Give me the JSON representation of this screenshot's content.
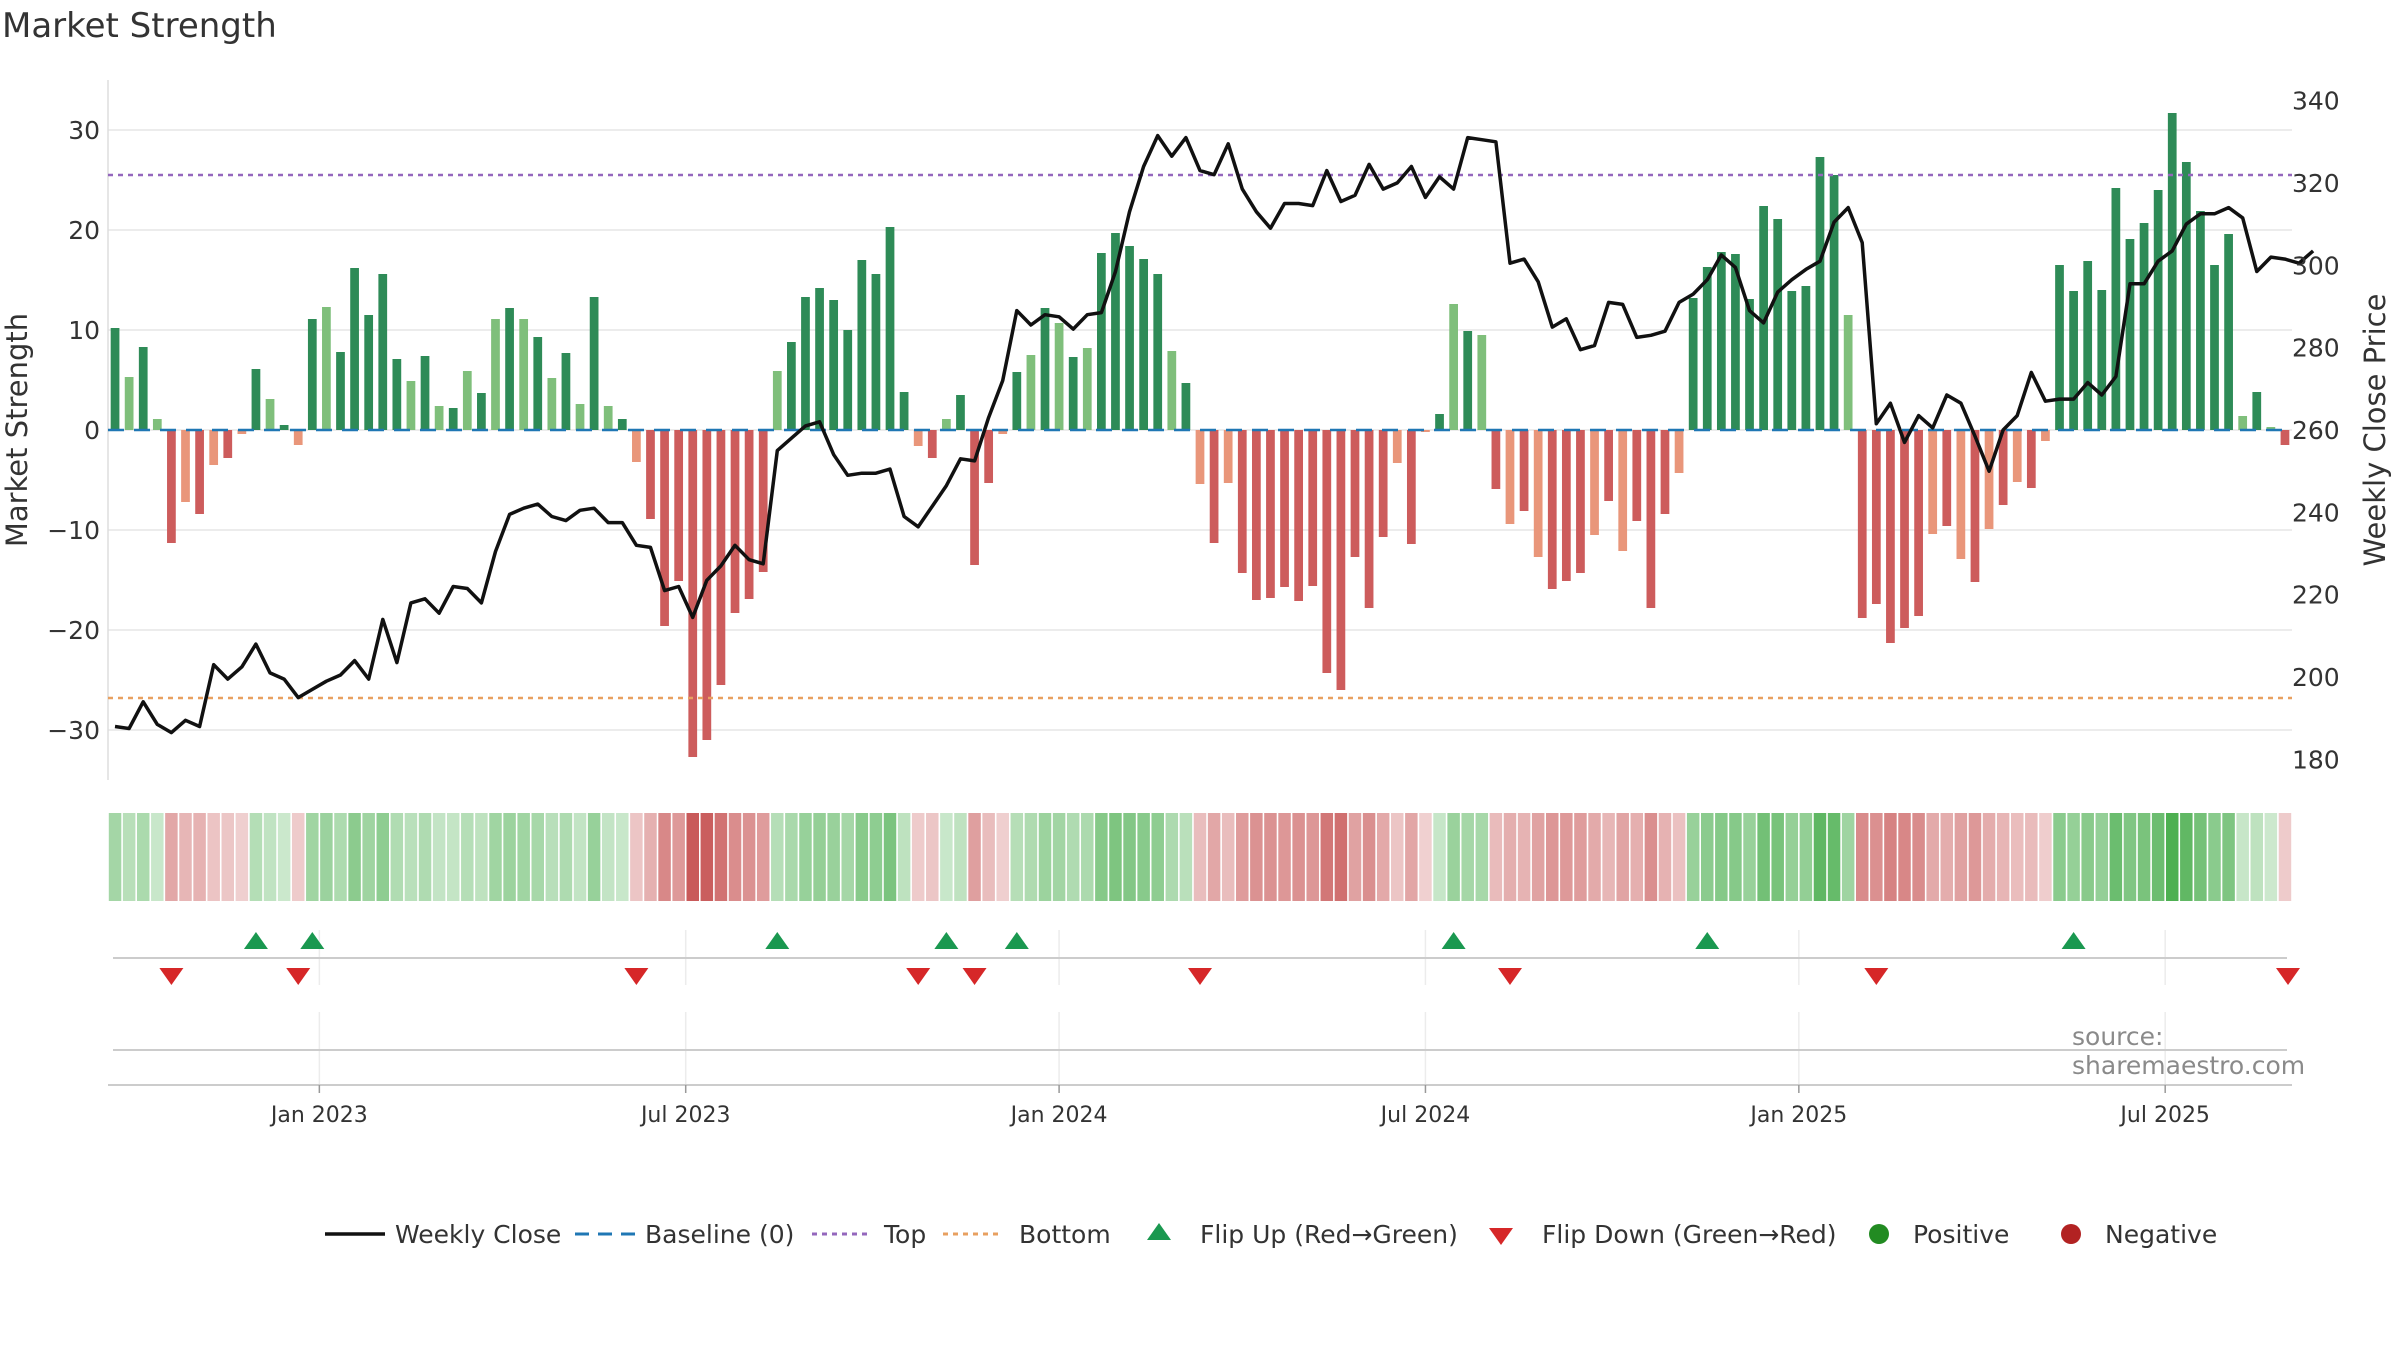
{
  "title": "Market Strength",
  "source": "source: sharemaestro.com",
  "chart_data": {
    "type": "bar",
    "title": "Market Strength",
    "ylabel": "Market Strength",
    "y2label": "Weekly Close Price",
    "ylim": [
      -35,
      35
    ],
    "y2lim": [
      175,
      345
    ],
    "yticks": [
      -30,
      -20,
      -10,
      0,
      10,
      20,
      30
    ],
    "y2ticks": [
      180,
      200,
      220,
      240,
      260,
      280,
      300,
      320,
      340
    ],
    "top_threshold": 25.5,
    "bottom_threshold": -26.8,
    "x_ticks": [
      {
        "label": "Jan 2023",
        "week": 15
      },
      {
        "label": "Jul 2023",
        "week": 41
      },
      {
        "label": "Jan 2024",
        "week": 67.5
      },
      {
        "label": "Jul 2024",
        "week": 93.5
      },
      {
        "label": "Jan 2025",
        "week": 120
      },
      {
        "label": "Jul 2025",
        "week": 146
      }
    ],
    "strength": [
      10.2,
      5.3,
      8.3,
      1.1,
      -11.3,
      -7.2,
      -8.4,
      -3.5,
      -2.8,
      -0.4,
      6.1,
      3.1,
      0.5,
      -1.5,
      11.1,
      12.3,
      7.8,
      16.2,
      11.5,
      15.6,
      7.1,
      4.9,
      7.4,
      2.4,
      2.2,
      5.9,
      3.7,
      11.1,
      12.2,
      11.1,
      9.3,
      5.2,
      7.7,
      2.6,
      13.3,
      2.4,
      1.1,
      -3.2,
      -8.9,
      -19.6,
      -15.1,
      -32.7,
      -31.0,
      -25.5,
      -18.3,
      -16.9,
      -14.2,
      5.9,
      8.8,
      13.3,
      14.2,
      13.0,
      10.0,
      17.0,
      15.6,
      20.3,
      3.8,
      -1.6,
      -2.8,
      1.1,
      3.5,
      -13.5,
      -5.3,
      -0.4,
      5.8,
      7.5,
      12.2,
      10.7,
      7.3,
      8.2,
      17.7,
      19.7,
      18.4,
      17.1,
      15.6,
      7.9,
      4.7,
      -5.4,
      -11.3,
      -5.3,
      -14.3,
      -17.0,
      -16.8,
      -15.7,
      -17.1,
      -15.6,
      -24.3,
      -26.0,
      -12.7,
      -17.8,
      -10.7,
      -3.3,
      -11.4,
      -0.2,
      1.6,
      12.6,
      9.9,
      9.5,
      -5.9,
      -9.4,
      -8.1,
      -12.7,
      -15.9,
      -15.1,
      -14.3,
      -10.5,
      -7.1,
      -12.1,
      -9.1,
      -17.8,
      -8.4,
      -4.3,
      13.2,
      16.3,
      17.8,
      17.6,
      13.1,
      22.4,
      21.1,
      13.9,
      14.4,
      27.3,
      25.5,
      11.5,
      -18.8,
      -17.4,
      -21.3,
      -19.8,
      -18.6,
      -10.4,
      -9.6,
      -12.9,
      -15.2,
      -9.9,
      -7.5,
      -5.2,
      -5.8,
      -1.1,
      16.5,
      13.9,
      16.9,
      14.0,
      24.2,
      19.1,
      20.7,
      24.0,
      31.7,
      26.8,
      21.9,
      16.5,
      19.6,
      1.4,
      3.8,
      0.3,
      -1.5
    ],
    "weekly_close": [
      188,
      187.5,
      194,
      188.5,
      186.5,
      189.5,
      188,
      203,
      199.5,
      202.5,
      208,
      201,
      199.5,
      195,
      197,
      199,
      200.5,
      204,
      199.5,
      214,
      203.5,
      218,
      219,
      215.5,
      222,
      221.5,
      218,
      230.5,
      239.5,
      241,
      242,
      239,
      238,
      240.5,
      241,
      237.5,
      237.5,
      232,
      231.5,
      221,
      222,
      214.5,
      223.5,
      227,
      232,
      228.5,
      227.5,
      255,
      258,
      261,
      262,
      254,
      249,
      249.5,
      249.5,
      250.5,
      239,
      236.5,
      241.5,
      246.5,
      253,
      252.5,
      263,
      272,
      289,
      285.5,
      288,
      287.5,
      284.5,
      288,
      288.5,
      298.5,
      313,
      324,
      331.5,
      326.5,
      331,
      323,
      322,
      329.5,
      318.5,
      313,
      309,
      315,
      315,
      314.5,
      323,
      315.5,
      317,
      324.5,
      318.5,
      320,
      324,
      316.5,
      321.5,
      318.5,
      331,
      330.5,
      330,
      300.5,
      301.5,
      296,
      285,
      287,
      279.5,
      280.5,
      291,
      290.5,
      282.5,
      283,
      284,
      291,
      293,
      296.5,
      302.5,
      299.5,
      289,
      286,
      293.5,
      296.5,
      299,
      301,
      310.5,
      314,
      305.5,
      261.5,
      266.5,
      257,
      263.5,
      260.5,
      268.5,
      266.5,
      258.5,
      250,
      260,
      263.5,
      274,
      267,
      267.5,
      267.5,
      271.5,
      268.5,
      273,
      295.5,
      295.5,
      301,
      303.5,
      310,
      312.5,
      312.5,
      314,
      311.5,
      298.5,
      302,
      301.5,
      300.5,
      303.5
    ],
    "flip_up_weeks": [
      10,
      14,
      47,
      59,
      64,
      95,
      113,
      139
    ],
    "flip_down_weeks": [
      4,
      13,
      37,
      57,
      61,
      77,
      99,
      125,
      157
    ],
    "legend": [
      {
        "label": "Weekly Close",
        "kind": "line"
      },
      {
        "label": "Baseline (0)",
        "kind": "dash"
      },
      {
        "label": "Top",
        "kind": "dotted-purple"
      },
      {
        "label": "Bottom",
        "kind": "dotted-orange"
      },
      {
        "label": "Flip Up (Red→Green)",
        "kind": "tri-up"
      },
      {
        "label": "Flip Down (Green→Red)",
        "kind": "tri-down"
      },
      {
        "label": "Positive",
        "kind": "dot-green"
      },
      {
        "label": "Negative",
        "kind": "dot-red"
      }
    ]
  },
  "colors": {
    "pos_dark": "#2e8b57",
    "pos_light": "#7fbf7b",
    "neg_dark": "#cd5c5c",
    "neg_light": "#e9967a",
    "line": "#111111",
    "baseline": "#1f77b4",
    "top": "#9467bd",
    "bottom": "#e8a060",
    "flip_up": "#1a9850",
    "flip_down": "#d62728",
    "positive": "#228b22",
    "negative": "#b22222"
  }
}
